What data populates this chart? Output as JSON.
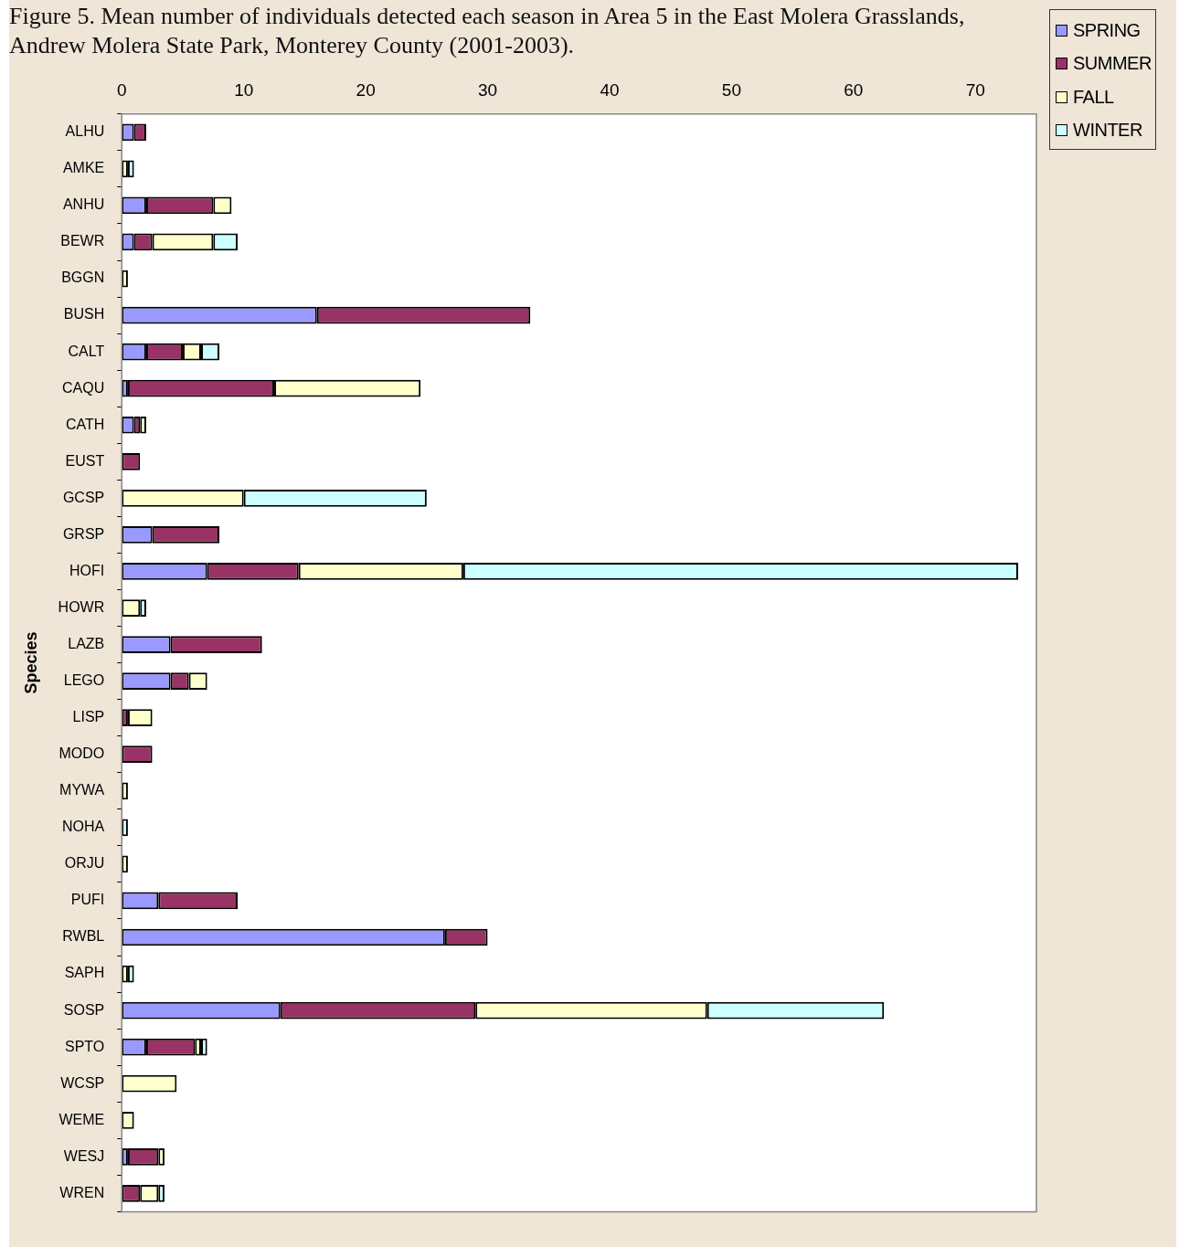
{
  "chart_data": {
    "type": "bar",
    "orientation": "horizontal",
    "stacked": true,
    "title": "Figure 5. Mean number of individuals detected each season in Area 5 in the East Molera Grasslands, Andrew Molera State Park, Monterey County (2001-2003).",
    "ylabel": "Species",
    "categories": [
      "ALHU",
      "AMKE",
      "ANHU",
      "BEWR",
      "BGGN",
      "BUSH",
      "CALT",
      "CAQU",
      "CATH",
      "EUST",
      "GCSP",
      "GRSP",
      "HOFI",
      "HOWR",
      "LAZB",
      "LEGO",
      "LISP",
      "MODO",
      "MYWA",
      "NOHA",
      "ORJU",
      "PUFI",
      "RWBL",
      "SAPH",
      "SOSP",
      "SPTO",
      "WCSP",
      "WEME",
      "WESJ",
      "WREN"
    ],
    "series": [
      {
        "name": "SPRING",
        "color": "#9999ff",
        "values": [
          1,
          null,
          2,
          1,
          null,
          16,
          2,
          0.5,
          1,
          null,
          null,
          2.5,
          7,
          null,
          4,
          4,
          null,
          null,
          null,
          null,
          null,
          3,
          26.5,
          null,
          13,
          2,
          null,
          null,
          0.5,
          null
        ]
      },
      {
        "name": "SUMMER",
        "color": "#993366",
        "values": [
          1,
          null,
          5.5,
          1.5,
          null,
          17.5,
          3,
          12,
          0.5,
          1.5,
          null,
          5.5,
          7.5,
          null,
          7.5,
          1.5,
          0.5,
          2.5,
          null,
          null,
          null,
          6.5,
          3.5,
          null,
          16,
          4,
          null,
          null,
          2.5,
          1.5
        ]
      },
      {
        "name": "FALL",
        "color": "#ffffcc",
        "values": [
          null,
          0.5,
          1.5,
          5,
          0.5,
          null,
          1.5,
          12,
          0.5,
          null,
          10,
          null,
          13.5,
          1.5,
          null,
          1.5,
          2,
          null,
          0.5,
          null,
          0.5,
          null,
          null,
          0.5,
          19,
          0.5,
          4.5,
          1,
          0.5,
          1.5
        ]
      },
      {
        "name": "WINTER",
        "color": "#ccffff",
        "values": [
          null,
          0.5,
          null,
          2,
          null,
          null,
          1.5,
          null,
          null,
          null,
          15,
          null,
          45.5,
          0.5,
          null,
          null,
          null,
          null,
          null,
          0.5,
          null,
          null,
          null,
          0.5,
          14.5,
          0.5,
          null,
          null,
          null,
          0.5
        ]
      }
    ],
    "xlim": [
      0,
      75
    ],
    "xticks": [
      0,
      10,
      20,
      30,
      40,
      50,
      60,
      70
    ],
    "grid": false,
    "legend": "top right"
  }
}
